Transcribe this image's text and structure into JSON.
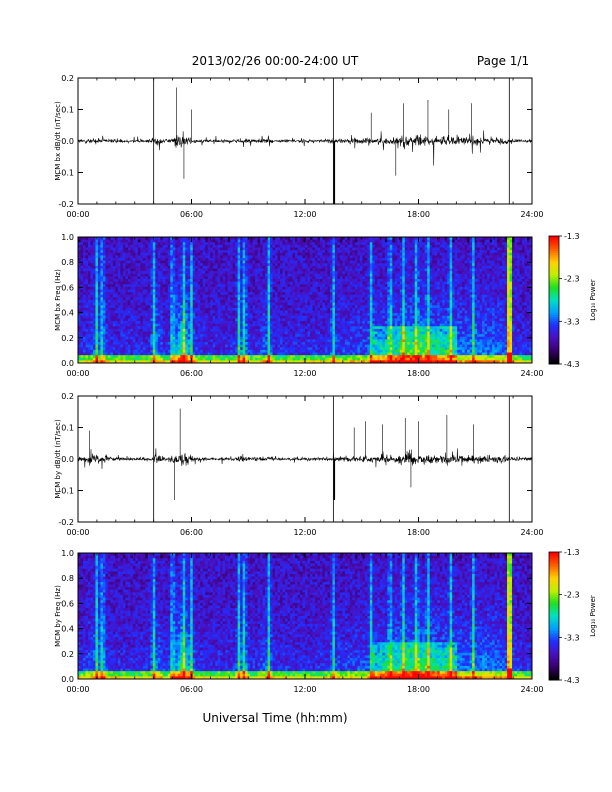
{
  "header": {
    "title": "2013/02/26  00:00-24:00 UT",
    "page": "Page 1/1"
  },
  "x_axis_label": "Universal Time (hh:mm)",
  "colorbar": {
    "label": "Log₁₀ Power",
    "ticks": [
      "-1.3",
      "-2.3",
      "-3.3",
      "-4.3"
    ],
    "range": [
      -4.3,
      -1.3
    ],
    "colors": [
      "#000000",
      "#3a0070",
      "#4a10c0",
      "#2030ff",
      "#00a0ff",
      "#00e0c0",
      "#20e020",
      "#c0f000",
      "#ffd000",
      "#ff6000",
      "#ff0000"
    ]
  },
  "chart_data": [
    {
      "type": "line",
      "ylabel": "MCM bx dB/dt (nT/sec)",
      "ylim": [
        -0.2,
        0.2
      ],
      "yticks": [
        "0.2",
        "0.1",
        "0.0",
        "-0.1",
        "-0.2"
      ],
      "xlim": [
        0,
        24
      ],
      "xticks": [
        "00:00",
        "06:00",
        "12:00",
        "18:00",
        "24:00"
      ],
      "markers_hours": [
        4.0,
        13.5,
        22.8
      ],
      "color": "#000000"
    },
    {
      "type": "heatmap",
      "ylabel": "MCM bx Freq (Hz)",
      "ylim": [
        0.0,
        1.0
      ],
      "yticks": [
        "1.0",
        "0.8",
        "0.6",
        "0.4",
        "0.2",
        "0.0"
      ],
      "xlim": [
        0,
        24
      ],
      "xticks": [
        "00:00",
        "06:00",
        "12:00",
        "18:00",
        "24:00"
      ],
      "value_range": [
        -4.3,
        -1.3
      ]
    },
    {
      "type": "line",
      "ylabel": "MCM by dB/dt (nT/sec)",
      "ylim": [
        -0.2,
        0.2
      ],
      "yticks": [
        "0.2",
        "0.1",
        "0.0",
        "-0.1",
        "-0.2"
      ],
      "xlim": [
        0,
        24
      ],
      "xticks": [
        "00:00",
        "06:00",
        "12:00",
        "18:00",
        "24:00"
      ],
      "markers_hours": [
        4.0,
        13.5,
        22.8
      ],
      "color": "#000000"
    },
    {
      "type": "heatmap",
      "ylabel": "MCM by Freq (Hz)",
      "ylim": [
        0.0,
        1.0
      ],
      "yticks": [
        "1.0",
        "0.8",
        "0.6",
        "0.4",
        "0.2",
        "0.0"
      ],
      "xlim": [
        0,
        24
      ],
      "xticks": [
        "00:00",
        "06:00",
        "12:00",
        "18:00",
        "24:00"
      ],
      "value_range": [
        -4.3,
        -1.3
      ]
    }
  ]
}
